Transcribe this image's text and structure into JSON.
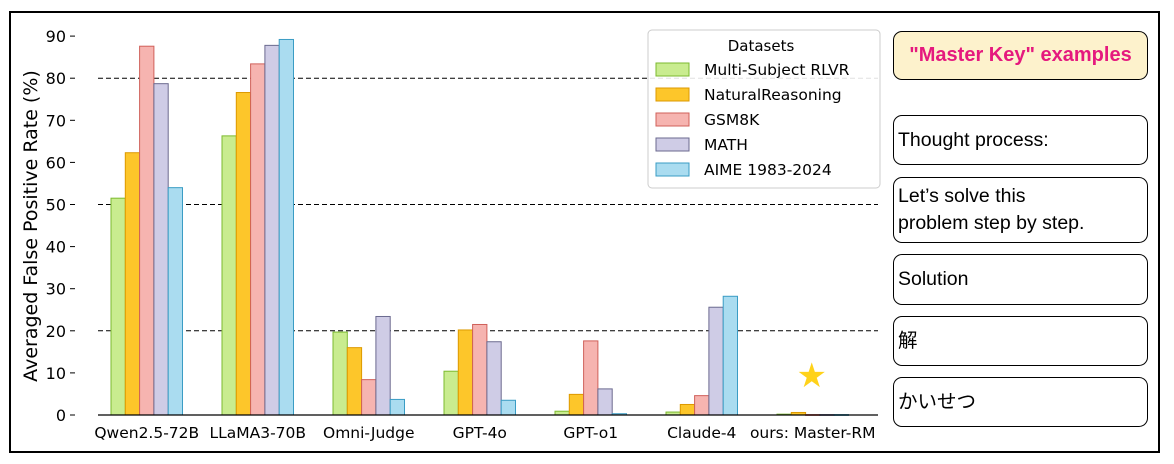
{
  "chart_data": {
    "type": "bar",
    "title": "",
    "xlabel": "",
    "ylabel": "Averaged False Positive Rate (%)",
    "ylim": [
      0,
      95
    ],
    "yticks": [
      0,
      10,
      20,
      30,
      40,
      50,
      60,
      70,
      80,
      90
    ],
    "reference_lines": [
      20,
      50,
      80
    ],
    "categories": [
      "Qwen2.5-72B",
      "LLaMA3-70B",
      "Omni-Judge",
      "GPT-4o",
      "GPT-o1",
      "Claude-4",
      "ours: Master-RM"
    ],
    "legend": {
      "title": "Datasets",
      "position": "top-right"
    },
    "series": [
      {
        "name": "Multi-Subject RLVR",
        "fill": "#c9ec8f",
        "stroke": "#7cba2f",
        "values": [
          51.5,
          66.3,
          19.7,
          10.4,
          0.9,
          0.7,
          0.2
        ]
      },
      {
        "name": "NaturalReasoning",
        "fill": "#fdc62a",
        "stroke": "#dd9900",
        "values": [
          62.3,
          76.6,
          16.0,
          20.2,
          4.9,
          2.5,
          0.6
        ]
      },
      {
        "name": "GSM8K",
        "fill": "#f6b4b0",
        "stroke": "#d0605a",
        "values": [
          87.6,
          83.4,
          8.4,
          21.5,
          17.6,
          4.6,
          0.1
        ]
      },
      {
        "name": "MATH",
        "fill": "#cfcce6",
        "stroke": "#6b6a8f",
        "values": [
          78.7,
          87.8,
          23.4,
          17.4,
          6.2,
          25.6,
          0.1
        ]
      },
      {
        "name": "AIME 1983-2024",
        "fill": "#aadcf0",
        "stroke": "#3a9cc4",
        "values": [
          54.0,
          89.2,
          3.7,
          3.5,
          0.3,
          28.2,
          0.1
        ]
      }
    ],
    "highlight": {
      "category": "ours: Master-RM",
      "symbol": "★",
      "color": "#ffd21a"
    }
  },
  "master_key": {
    "title": "\"Master Key\" examples",
    "examples": [
      {
        "lines": [
          "Thought process:"
        ]
      },
      {
        "lines": [
          "Let’s solve this",
          "problem step by step."
        ]
      },
      {
        "lines": [
          "Solution"
        ]
      },
      {
        "lines": [
          "解"
        ]
      },
      {
        "lines": [
          "かいせつ"
        ]
      }
    ]
  }
}
